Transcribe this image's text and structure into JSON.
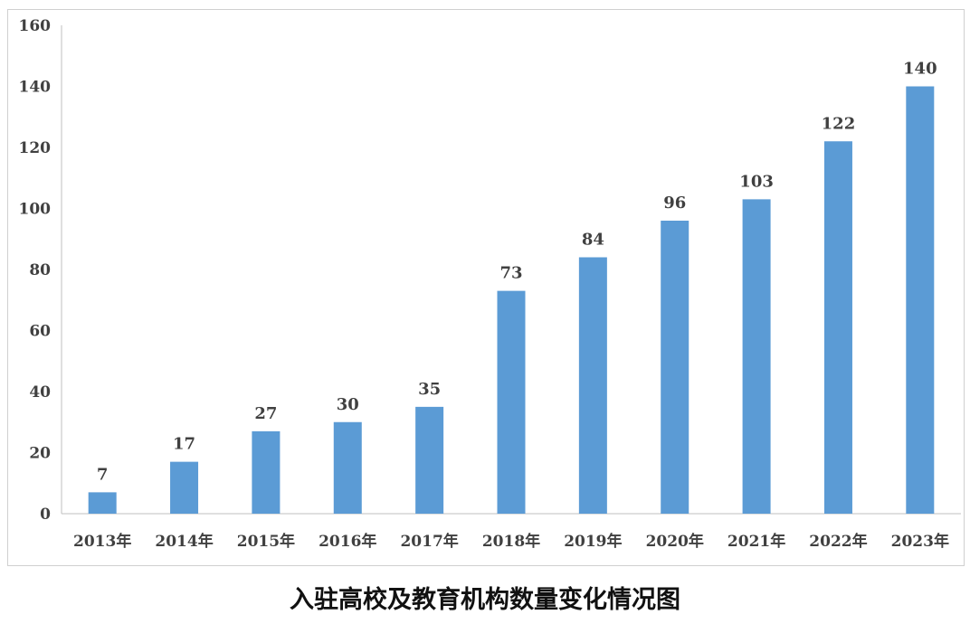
{
  "chart_data": {
    "type": "bar",
    "title": "入驻高校及教育机构数量变化情况图",
    "categories": [
      "2013年",
      "2014年",
      "2015年",
      "2016年",
      "2017年",
      "2018年",
      "2019年",
      "2020年",
      "2021年",
      "2022年",
      "2023年"
    ],
    "values": [
      7,
      17,
      27,
      30,
      35,
      73,
      84,
      96,
      103,
      122,
      140
    ],
    "ylim": [
      0,
      160
    ],
    "yticks": [
      0,
      20,
      40,
      60,
      80,
      100,
      120,
      140,
      160
    ],
    "grid": false,
    "legend": "none",
    "bar_color": "#5b9bd5",
    "data_labels": true
  }
}
